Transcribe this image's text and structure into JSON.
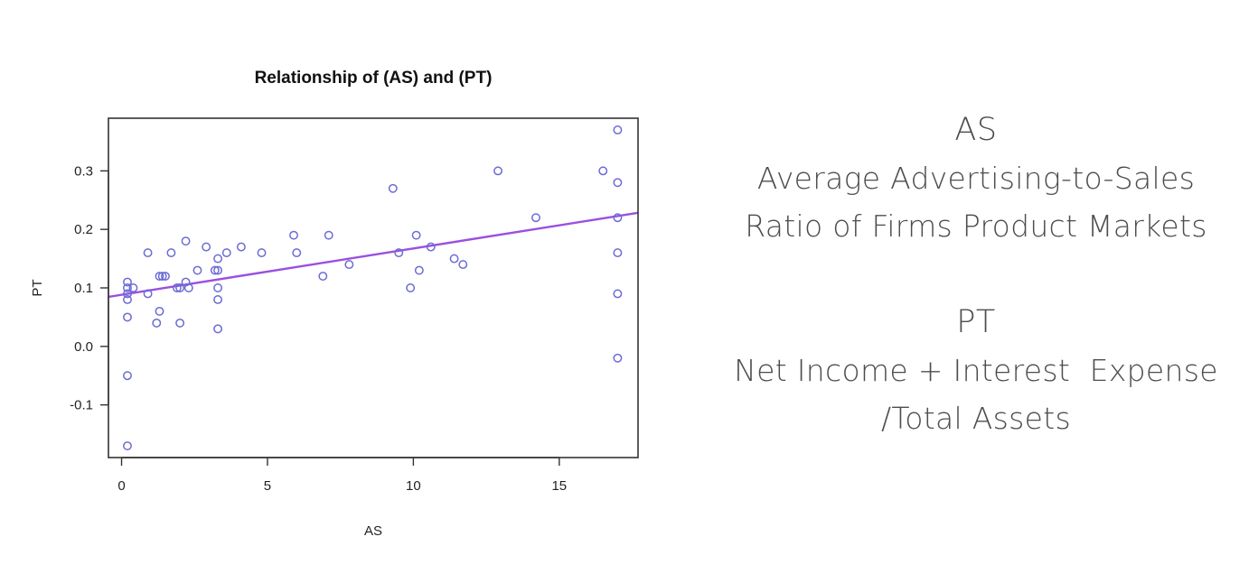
{
  "chart_data": {
    "type": "scatter",
    "title": "Relationship of (AS) and (PT)",
    "xlabel": "AS",
    "ylabel": "PT",
    "xlim": [
      -0.45,
      17.7
    ],
    "ylim": [
      -0.19,
      0.39
    ],
    "xticks": [
      0,
      5,
      10,
      15
    ],
    "yticks": [
      -0.1,
      0.0,
      0.1,
      0.2,
      0.3
    ],
    "xtick_labels": [
      "0",
      "5",
      "10",
      "15"
    ],
    "ytick_labels": [
      "-0.1",
      "0.0",
      "0.1",
      "0.2",
      "0.3"
    ],
    "grid": false,
    "point_color": "#6b6bd6",
    "line_color": "#9b4fe0",
    "points": [
      [
        0.2,
        0.11
      ],
      [
        0.2,
        0.1
      ],
      [
        0.2,
        0.09
      ],
      [
        0.2,
        0.08
      ],
      [
        0.2,
        0.05
      ],
      [
        0.2,
        -0.05
      ],
      [
        0.2,
        -0.17
      ],
      [
        0.4,
        0.1
      ],
      [
        0.9,
        0.16
      ],
      [
        0.9,
        0.09
      ],
      [
        1.2,
        0.04
      ],
      [
        1.3,
        0.06
      ],
      [
        1.3,
        0.12
      ],
      [
        1.4,
        0.12
      ],
      [
        1.5,
        0.12
      ],
      [
        1.7,
        0.16
      ],
      [
        1.9,
        0.1
      ],
      [
        2.0,
        0.1
      ],
      [
        2.0,
        0.04
      ],
      [
        2.2,
        0.18
      ],
      [
        2.2,
        0.11
      ],
      [
        2.3,
        0.1
      ],
      [
        2.6,
        0.13
      ],
      [
        2.9,
        0.17
      ],
      [
        3.2,
        0.13
      ],
      [
        3.3,
        0.15
      ],
      [
        3.3,
        0.13
      ],
      [
        3.3,
        0.1
      ],
      [
        3.3,
        0.08
      ],
      [
        3.3,
        0.03
      ],
      [
        3.6,
        0.16
      ],
      [
        4.1,
        0.17
      ],
      [
        4.8,
        0.16
      ],
      [
        5.9,
        0.19
      ],
      [
        6.0,
        0.16
      ],
      [
        6.9,
        0.12
      ],
      [
        7.1,
        0.19
      ],
      [
        7.8,
        0.14
      ],
      [
        9.3,
        0.27
      ],
      [
        9.5,
        0.16
      ],
      [
        9.9,
        0.1
      ],
      [
        10.1,
        0.19
      ],
      [
        10.2,
        0.13
      ],
      [
        10.6,
        0.17
      ],
      [
        11.4,
        0.15
      ],
      [
        11.7,
        0.14
      ],
      [
        12.9,
        0.3
      ],
      [
        14.2,
        0.22
      ],
      [
        16.5,
        0.3
      ],
      [
        17.0,
        0.37
      ],
      [
        17.0,
        0.28
      ],
      [
        17.0,
        0.22
      ],
      [
        17.0,
        0.16
      ],
      [
        17.0,
        0.09
      ],
      [
        17.0,
        -0.02
      ]
    ],
    "regression_line": {
      "intercept": 0.0882,
      "slope": 0.00792
    }
  },
  "definitions": [
    {
      "term": "AS",
      "lines": [
        "Average Advertising-to-Sales",
        "Ratio of Firms Product Markets"
      ]
    },
    {
      "term": "PT",
      "lines": [
        "Net Income + Interest  Expense",
        "/Total Assets"
      ]
    }
  ]
}
